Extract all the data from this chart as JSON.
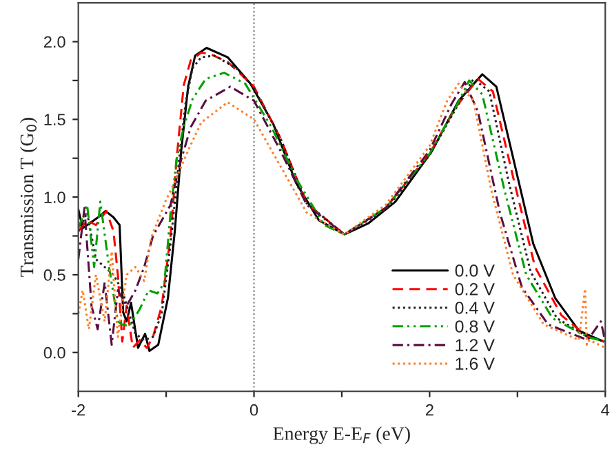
{
  "chart_data": {
    "type": "line",
    "xlabel": "Energy E-E$_{F}$ (eV)",
    "ylabel": "Transmission T (G$_{0}$)",
    "xlim": [
      -2,
      4
    ],
    "ylim": [
      -0.25,
      2.25
    ],
    "xticks": [
      -2,
      {
        "value": -1,
        "label": null
      },
      0,
      {
        "value": 1,
        "label": null
      },
      2,
      {
        "value": 3,
        "label": null
      },
      4
    ],
    "yticks": [
      {
        "value": 0,
        "label": "0.0"
      },
      {
        "value": 0.25,
        "label": null
      },
      0.5,
      {
        "value": 0.75,
        "label": null
      },
      {
        "value": 1,
        "label": "1.0"
      },
      {
        "value": 1.25,
        "label": null
      },
      1.5,
      {
        "value": 1.75,
        "label": null
      },
      {
        "value": 2,
        "label": "2.0"
      }
    ],
    "grid": false,
    "legend": "bottom right",
    "ref_lines": [
      {
        "axis": "x",
        "value": 0,
        "color": "#808080",
        "line_style": "dotted"
      }
    ],
    "series": [
      {
        "name": "0.0 V",
        "color": "#000000",
        "line_style": "solid",
        "x": [
          -2,
          -1.95,
          -1.85,
          -1.75,
          -1.69,
          -1.6,
          -1.53,
          -1.49,
          -1.45,
          -1.4,
          -1.32,
          -1.24,
          -1.19,
          -1.09,
          -0.98,
          -0.9,
          -0.83,
          -0.75,
          -0.67,
          -0.54,
          -0.3,
          -0.04,
          0.22,
          0.48,
          0.74,
          1.03,
          1.3,
          1.61,
          2.02,
          2.33,
          2.6,
          2.76,
          2.96,
          3.18,
          3.43,
          3.7,
          3.98
        ],
        "values": [
          0.92,
          0.8,
          0.84,
          0.88,
          0.91,
          0.87,
          0.82,
          0.26,
          0.2,
          0.32,
          0.03,
          0.12,
          0.01,
          0.05,
          0.35,
          0.79,
          1.29,
          1.71,
          1.91,
          1.96,
          1.9,
          1.73,
          1.47,
          1.09,
          0.85,
          0.76,
          0.83,
          0.97,
          1.29,
          1.62,
          1.79,
          1.71,
          1.23,
          0.7,
          0.35,
          0.14,
          0.07
        ]
      },
      {
        "name": "0.2 V",
        "color": "#ff0000",
        "line_style": "dashed",
        "x": [
          -2,
          -1.9,
          -1.8,
          -1.68,
          -1.6,
          -1.55,
          -1.5,
          -1.45,
          -1.38,
          -1.3,
          -1.22,
          -1.15,
          -1.05,
          -0.95,
          -0.88,
          -0.8,
          -0.72,
          -0.6,
          -0.5,
          -0.3,
          0,
          0.3,
          0.6,
          1.03,
          1.5,
          2.0,
          2.3,
          2.55,
          2.72,
          2.95,
          3.2,
          3.5,
          3.8,
          4
        ],
        "values": [
          0.78,
          0.85,
          0.82,
          0.91,
          0.78,
          0.5,
          0.07,
          0.3,
          0.03,
          0.08,
          0.03,
          0.1,
          0.3,
          0.75,
          1.25,
          1.72,
          1.88,
          1.93,
          1.92,
          1.87,
          1.71,
          1.38,
          0.96,
          0.76,
          0.93,
          1.28,
          1.58,
          1.76,
          1.68,
          1.13,
          0.55,
          0.24,
          0.1,
          0.07
        ]
      },
      {
        "name": "0.4 V",
        "color": "#222222",
        "line_style": "dotted",
        "x": [
          -2,
          -1.9,
          -1.8,
          -1.7,
          -1.6,
          -1.5,
          -1.42,
          -1.35,
          -1.25,
          -1.15,
          -1.05,
          -0.95,
          -0.86,
          -0.78,
          -0.7,
          -0.6,
          -0.45,
          -0.2,
          0,
          0.3,
          0.6,
          1.03,
          1.5,
          2.0,
          2.3,
          2.5,
          2.68,
          2.9,
          3.15,
          3.45,
          3.8,
          4
        ],
        "values": [
          0.78,
          0.9,
          0.6,
          0.55,
          0.5,
          0.4,
          0.25,
          0.12,
          0.08,
          0.1,
          0.25,
          0.7,
          1.2,
          1.6,
          1.83,
          1.9,
          1.91,
          1.83,
          1.7,
          1.38,
          0.96,
          0.76,
          0.92,
          1.27,
          1.57,
          1.76,
          1.68,
          1.1,
          0.52,
          0.22,
          0.1,
          0.07
        ]
      },
      {
        "name": "0.8 V",
        "color": "#00a000",
        "line_style": "dashdotdot",
        "x": [
          -2,
          -1.9,
          -1.82,
          -1.75,
          -1.65,
          -1.55,
          -1.5,
          -1.42,
          -1.3,
          -1.2,
          -1.1,
          -1.02,
          -0.95,
          -0.88,
          -0.8,
          -0.7,
          -0.55,
          -0.34,
          -0.1,
          0.2,
          0.5,
          0.8,
          1.03,
          1.5,
          2.0,
          2.3,
          2.45,
          2.6,
          2.85,
          3.1,
          3.4,
          3.8,
          4
        ],
        "values": [
          0.8,
          0.95,
          0.55,
          0.97,
          0.55,
          0.2,
          0.18,
          0.17,
          0.28,
          0.4,
          0.38,
          0.45,
          0.9,
          1.25,
          1.45,
          1.63,
          1.76,
          1.8,
          1.73,
          1.45,
          1.1,
          0.82,
          0.76,
          0.93,
          1.28,
          1.58,
          1.75,
          1.66,
          1.05,
          0.5,
          0.22,
          0.1,
          0.07
        ]
      },
      {
        "name": "1.2 V",
        "color": "#5a1040",
        "line_style": "dashdot",
        "x": [
          -2,
          -1.93,
          -1.85,
          -1.78,
          -1.7,
          -1.62,
          -1.55,
          -1.45,
          -1.35,
          -1.25,
          -1.15,
          -1.05,
          -0.95,
          -0.85,
          -0.72,
          -0.55,
          -0.27,
          0,
          0.3,
          0.6,
          1.03,
          1.5,
          2.0,
          2.25,
          2.4,
          2.55,
          2.8,
          3.05,
          3.35,
          3.8,
          3.95,
          4
        ],
        "values": [
          0.6,
          0.93,
          0.3,
          0.15,
          0.45,
          0.05,
          0.4,
          0.3,
          0.4,
          0.55,
          0.75,
          0.85,
          0.95,
          1.2,
          1.45,
          1.62,
          1.71,
          1.62,
          1.3,
          0.95,
          0.76,
          0.93,
          1.3,
          1.6,
          1.74,
          1.55,
          0.9,
          0.42,
          0.18,
          0.08,
          0.2,
          0.07
        ]
      },
      {
        "name": "1.6 V",
        "color": "#ff7f27",
        "line_style": "dotted",
        "x": [
          -2,
          -1.95,
          -1.88,
          -1.8,
          -1.7,
          -1.62,
          -1.55,
          -1.45,
          -1.35,
          -1.25,
          -1.17,
          -1.01,
          -0.9,
          -0.75,
          -0.6,
          -0.3,
          0,
          0.3,
          0.6,
          1.03,
          1.5,
          2.0,
          2.2,
          2.33,
          2.5,
          2.7,
          2.95,
          3.3,
          3.7,
          3.77,
          3.79,
          3.82,
          4
        ],
        "values": [
          0.25,
          0.4,
          0.15,
          0.5,
          0.2,
          0.65,
          0.1,
          0.5,
          0.55,
          0.46,
          0.74,
          0.97,
          1.1,
          1.3,
          1.48,
          1.61,
          1.5,
          1.2,
          0.9,
          0.76,
          0.95,
          1.33,
          1.62,
          1.73,
          1.62,
          1.05,
          0.5,
          0.18,
          0.08,
          0.41,
          0.05,
          0.08,
          0.03
        ]
      }
    ]
  }
}
